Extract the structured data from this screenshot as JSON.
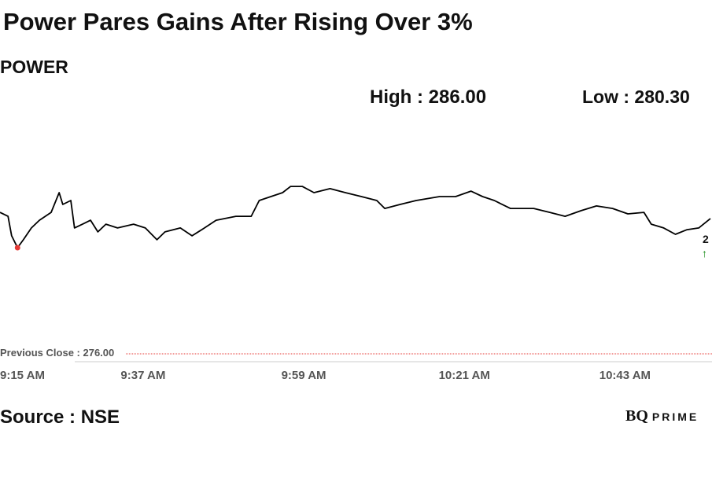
{
  "chart_data": {
    "type": "line",
    "title": "Power Pares Gains After Rising Over 3%",
    "subtitle": "POWER",
    "high_label": "High : 286.00",
    "low_label": "Low : 280.30",
    "previous_close_label": "Previous Close : 276.00",
    "previous_close": 276.0,
    "source": "Source : NSE",
    "logo": "BQ PRIME",
    "last_price_label_partial": "2",
    "arrow": "↑",
    "colors": {
      "line": "#000000",
      "prev_close": "#e53935",
      "low_marker": "#e53935",
      "up_arrow": "#118811"
    },
    "x_unit": "minutes since 9:15 AM",
    "xlim": [
      2.4,
      99.7
    ],
    "ylim": [
      276.0,
      286.0
    ],
    "x_ticks": [
      {
        "value": 0,
        "label": "9:15 AM"
      },
      {
        "value": 22,
        "label": "9:37 AM"
      },
      {
        "value": 44,
        "label": "9:59 AM"
      },
      {
        "value": 66,
        "label": "10:21 AM"
      },
      {
        "value": 88,
        "label": "10:43 AM"
      }
    ],
    "low_point": {
      "x": 4.8,
      "y": 280.3
    },
    "series": [
      {
        "name": "POWER",
        "x": [
          2.4,
          3.5,
          4.0,
          4.8,
          5.6,
          6.7,
          7.8,
          9.4,
          10.5,
          11.0,
          12.1,
          12.6,
          13.7,
          14.8,
          15.8,
          16.9,
          18.5,
          20.7,
          22.3,
          23.9,
          25.0,
          27.1,
          28.7,
          30.4,
          32.0,
          34.7,
          36.8,
          37.9,
          39.5,
          41.1,
          42.2,
          43.8,
          45.4,
          47.6,
          49.7,
          51.9,
          54.0,
          55.1,
          57.2,
          59.4,
          62.6,
          64.8,
          66.9,
          68.5,
          70.1,
          72.3,
          75.5,
          77.7,
          79.8,
          82.0,
          84.1,
          86.3,
          88.4,
          90.6,
          91.6,
          93.3,
          94.9,
          96.5,
          98.1,
          99.7
        ],
        "y": [
          281.73,
          281.57,
          280.78,
          280.3,
          280.62,
          281.1,
          281.41,
          281.73,
          282.53,
          282.05,
          282.21,
          281.1,
          281.25,
          281.41,
          280.94,
          281.25,
          281.1,
          281.25,
          281.1,
          280.62,
          280.94,
          281.1,
          280.78,
          281.1,
          281.41,
          281.57,
          281.57,
          282.21,
          282.37,
          282.53,
          282.78,
          282.78,
          282.53,
          282.69,
          282.53,
          282.37,
          282.21,
          281.89,
          282.05,
          282.21,
          282.37,
          282.37,
          282.59,
          282.37,
          282.21,
          281.89,
          281.89,
          281.73,
          281.57,
          281.8,
          281.99,
          281.89,
          281.67,
          281.73,
          281.25,
          281.1,
          280.84,
          281.03,
          281.1,
          281.48
        ]
      }
    ]
  }
}
